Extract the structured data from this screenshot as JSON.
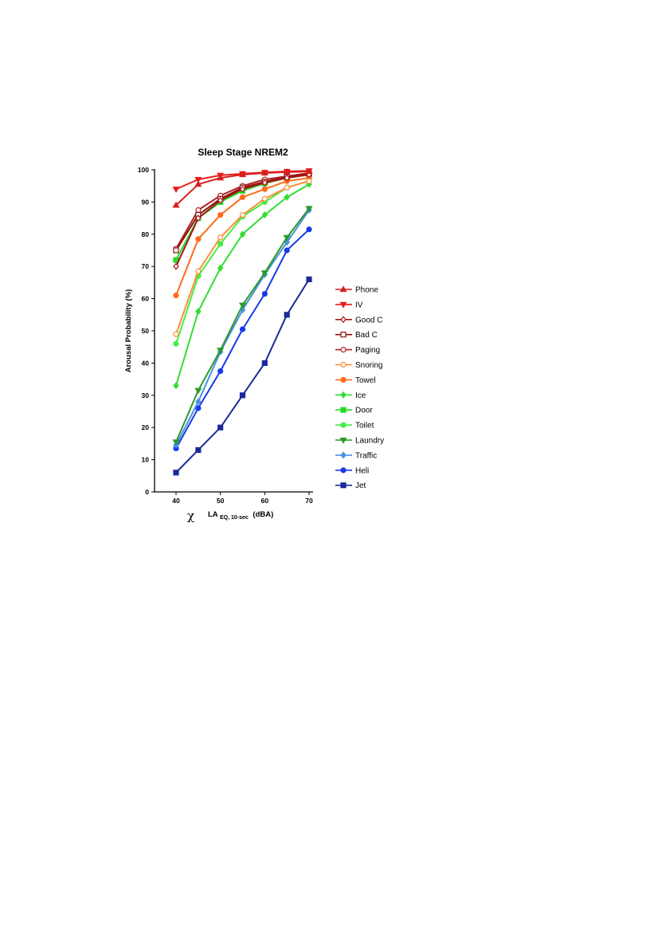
{
  "chart_data": {
    "type": "line",
    "title": "Sleep  Stage NREM2",
    "ylabel": "Arousal  Probability (%)",
    "xlabel_main": "LA",
    "xlabel_sub": "EQ, 10-sec",
    "xlabel_unit": "(dBA)",
    "stray_mark": "χ",
    "xlim": [
      40,
      70
    ],
    "ylim": [
      0,
      100
    ],
    "x_ticks": [
      40,
      50,
      60,
      70
    ],
    "y_ticks": [
      0,
      10,
      20,
      30,
      40,
      50,
      60,
      70,
      80,
      90,
      100
    ],
    "legend_position": "right",
    "x": [
      40,
      45,
      50,
      55,
      60,
      65,
      70
    ],
    "series": [
      {
        "name": "Phone",
        "color": "#d81e1e",
        "marker": "triangle-up",
        "filled": true,
        "values": [
          89,
          95.5,
          97.5,
          98.5,
          99,
          99.3,
          99.5
        ]
      },
      {
        "name": "IV",
        "color": "#e81c1c",
        "marker": "triangle-down",
        "filled": true,
        "values": [
          94,
          97,
          98.3,
          98.8,
          99.2,
          99.5,
          99.7
        ]
      },
      {
        "name": "Good C",
        "color": "#a51717",
        "marker": "diamond",
        "filled": false,
        "values": [
          70,
          85,
          90.5,
          94,
          96,
          97.5,
          98.5
        ]
      },
      {
        "name": "Bad C",
        "color": "#8c1010",
        "marker": "square",
        "filled": false,
        "values": [
          75,
          86,
          91,
          94.5,
          96.3,
          97.8,
          98.8
        ]
      },
      {
        "name": "Paging",
        "color": "#b22222",
        "marker": "circle",
        "filled": false,
        "values": [
          75.5,
          87.5,
          92,
          95,
          97,
          98,
          99
        ]
      },
      {
        "name": "Snoring",
        "color": "#ff8c3a",
        "marker": "circle",
        "filled": false,
        "values": [
          49,
          68.5,
          79,
          86,
          91,
          94.5,
          96.5
        ]
      },
      {
        "name": "Towel",
        "color": "#ff6a1a",
        "marker": "circle",
        "filled": true,
        "values": [
          61,
          78.5,
          86,
          91.5,
          94,
          96.5,
          97.5
        ]
      },
      {
        "name": "Ice",
        "color": "#33dd33",
        "marker": "diamond",
        "filled": true,
        "values": [
          33,
          56,
          69.5,
          80,
          86,
          91.5,
          95.5
        ]
      },
      {
        "name": "Door",
        "color": "#22dd22",
        "marker": "square",
        "filled": true,
        "values": [
          72,
          85,
          90,
          93.5,
          95.8,
          97.5,
          98.5
        ]
      },
      {
        "name": "Toilet",
        "color": "#44ee44",
        "marker": "circle",
        "filled": true,
        "values": [
          46,
          67,
          77,
          85.5,
          90,
          94.5,
          96.5
        ]
      },
      {
        "name": "Laundry",
        "color": "#2a9a2a",
        "marker": "triangle-down",
        "filled": true,
        "values": [
          15.5,
          31.5,
          44,
          58,
          68,
          79,
          88
        ]
      },
      {
        "name": "Traffic",
        "color": "#4a90e2",
        "marker": "diamond",
        "filled": true,
        "values": [
          14.5,
          28,
          43.5,
          56.5,
          67.5,
          77.5,
          87.5
        ]
      },
      {
        "name": "Heli",
        "color": "#1a3ae8",
        "marker": "circle",
        "filled": true,
        "values": [
          13.5,
          26,
          37.5,
          50.5,
          61.5,
          75,
          81.5
        ]
      },
      {
        "name": "Jet",
        "color": "#1a2a9a",
        "marker": "square",
        "filled": true,
        "values": [
          6,
          13,
          20,
          30,
          40,
          55,
          66
        ]
      }
    ]
  }
}
